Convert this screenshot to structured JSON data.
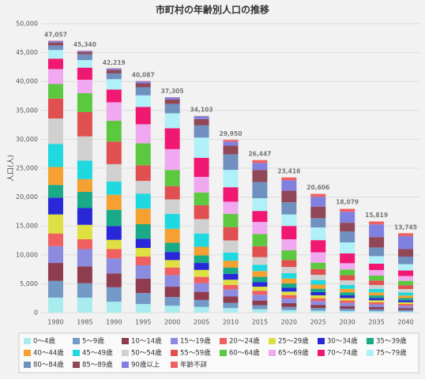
{
  "chart_data": {
    "type": "stacked_bar",
    "title": "市町村の年齢別人口の推移",
    "y_label": "人口(人)",
    "categories": [
      "1980",
      "1985",
      "1990",
      "1995",
      "2000",
      "2005",
      "2010",
      "2015",
      "2020",
      "2025",
      "2030",
      "2035",
      "2040"
    ],
    "totals": [
      47057,
      45340,
      42219,
      40087,
      37305,
      34103,
      29950,
      26447,
      23416,
      20606,
      18079,
      15819,
      13745
    ],
    "total_labels": [
      "47,057",
      "45,340",
      "42,219",
      "40,087",
      "37,305",
      "34,103",
      "29,950",
      "26,447",
      "23,416",
      "20,606",
      "18,079",
      "15,819",
      "13,745"
    ],
    "ylim": [
      0,
      50000
    ],
    "yticks": [
      0,
      {
        "value": 5000,
        "label": "5,000"
      },
      {
        "value": 10000,
        "label": "10,000"
      },
      {
        "value": 15000,
        "label": "15,000"
      },
      {
        "value": 20000,
        "label": "20,000"
      },
      {
        "value": 25000,
        "label": "25,000"
      },
      {
        "value": 30000,
        "label": "30,000"
      },
      {
        "value": 35000,
        "label": "35,000"
      },
      {
        "value": 40000,
        "label": "40,000"
      },
      {
        "value": 45000,
        "label": "45,000"
      },
      {
        "value": 50000,
        "label": "50,000"
      }
    ],
    "grid": true,
    "series": [
      {
        "name": "0～4歳",
        "color": "#a8ecf0",
        "values": [
          2600,
          2600,
          1900,
          1500,
          1200,
          1000,
          800,
          600,
          450,
          350,
          300,
          250,
          200
        ]
      },
      {
        "name": "5～9歳",
        "color": "#7399c6",
        "values": [
          2900,
          2500,
          2500,
          1900,
          1500,
          1200,
          900,
          700,
          550,
          450,
          380,
          320,
          270
        ]
      },
      {
        "name": "10～14歳",
        "color": "#8e3c4e",
        "values": [
          3100,
          2900,
          2400,
          2500,
          1800,
          1400,
          1100,
          800,
          650,
          550,
          460,
          390,
          330
        ]
      },
      {
        "name": "15～19歳",
        "color": "#8b8be0",
        "values": [
          2900,
          3000,
          2600,
          2300,
          2000,
          1500,
          1200,
          1000,
          800,
          650,
          550,
          470,
          400
        ]
      },
      {
        "name": "20～24歳",
        "color": "#f06060",
        "values": [
          2200,
          1700,
          1600,
          1500,
          1300,
          1100,
          800,
          700,
          600,
          500,
          420,
          350,
          300
        ]
      },
      {
        "name": "25～29歳",
        "color": "#dde040",
        "values": [
          3300,
          2500,
          1600,
          1500,
          1300,
          1200,
          900,
          700,
          600,
          500,
          420,
          360,
          300
        ]
      },
      {
        "name": "30～34歳",
        "color": "#2828d8",
        "values": [
          2900,
          2900,
          2400,
          1600,
          1400,
          1200,
          1000,
          800,
          650,
          550,
          470,
          400,
          340
        ]
      },
      {
        "name": "35～39歳",
        "color": "#1aaa88",
        "values": [
          2200,
          2800,
          2800,
          2500,
          1600,
          1300,
          1100,
          900,
          750,
          600,
          520,
          450,
          390
        ]
      },
      {
        "name": "40～44歳",
        "color": "#f5a030",
        "values": [
          3100,
          2200,
          2600,
          2700,
          2400,
          1500,
          1200,
          1000,
          850,
          700,
          600,
          520,
          450
        ]
      },
      {
        "name": "45～49歳",
        "color": "#20d8e0",
        "values": [
          4000,
          3200,
          2300,
          2600,
          2600,
          2300,
          1400,
          1100,
          950,
          800,
          700,
          600,
          520
        ]
      },
      {
        "name": "50～54歳",
        "color": "#d0d0d0",
        "values": [
          4400,
          4200,
          3000,
          2200,
          2500,
          2500,
          2100,
          1300,
          1050,
          900,
          780,
          680,
          590
        ]
      },
      {
        "name": "55～59歳",
        "color": "#e05050",
        "values": [
          3450,
          4200,
          3900,
          2700,
          2300,
          2400,
          2300,
          1900,
          1200,
          1000,
          880,
          770,
          670
        ]
      },
      {
        "name": "60～64歳",
        "color": "#5cc840",
        "values": [
          2500,
          3300,
          3600,
          3800,
          2800,
          2200,
          2300,
          2100,
          1700,
          1100,
          980,
          860,
          750
        ]
      },
      {
        "name": "65～69歳",
        "color": "#f0a8f0",
        "values": [
          2600,
          2300,
          3200,
          3300,
          3600,
          2700,
          2100,
          2100,
          1900,
          1800,
          1100,
          960,
          840
        ]
      },
      {
        "name": "70～74歳",
        "color": "#f01870",
        "values": [
          1800,
          2100,
          2200,
          3000,
          3600,
          3300,
          2500,
          1900,
          2300,
          2100,
          1700,
          1100,
          950
        ]
      },
      {
        "name": "75～79歳",
        "color": "#b0f0f8",
        "values": [
          1500,
          1300,
          1800,
          2000,
          2600,
          3500,
          3000,
          2200,
          2000,
          2200,
          1900,
          1300,
          1100
        ]
      },
      {
        "name": "80～84歳",
        "color": "#7090c0",
        "values": [
          800,
          1000,
          1000,
          1400,
          1600,
          2100,
          2700,
          2800,
          2100,
          1600,
          1900,
          1500,
          1300
        ]
      },
      {
        "name": "85～89歳",
        "color": "#904858",
        "values": [
          500,
          400,
          600,
          700,
          800,
          1100,
          1500,
          2100,
          2000,
          2000,
          1500,
          1800,
          1300
        ]
      },
      {
        "name": "90歳以上",
        "color": "#8080e0",
        "values": [
          250,
          200,
          250,
          350,
          350,
          500,
          700,
          1200,
          1800,
          1700,
          1900,
          2200,
          2250
        ]
      },
      {
        "name": "年齢不詳",
        "color": "#f06060",
        "values": [
          57,
          40,
          50,
          40,
          40,
          40,
          300,
          500,
          500,
          500,
          500,
          500,
          500
        ]
      }
    ]
  }
}
